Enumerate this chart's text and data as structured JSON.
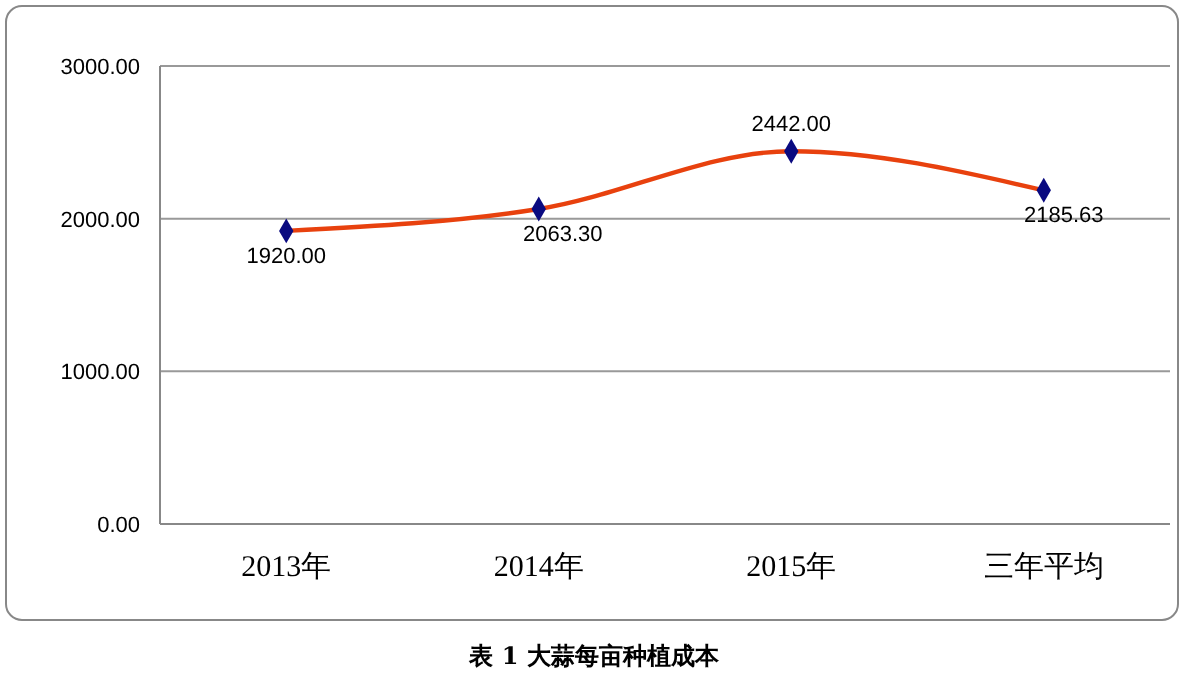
{
  "chart_data": {
    "type": "line",
    "categories": [
      "2013年",
      "2014年",
      "2015年",
      "三年平均"
    ],
    "series": [
      {
        "color": "#e8410e",
        "values": [
          1920,
          2063.3,
          2442,
          2185.63
        ],
        "value_labels": [
          "1920.00",
          "2063.30",
          "2442.00",
          "2185.63"
        ]
      }
    ],
    "ylim": [
      0,
      3000
    ],
    "yticks": [
      {
        "value": 0,
        "label": "0.00"
      },
      {
        "value": 1000,
        "label": "1000.00"
      },
      {
        "value": 2000,
        "label": "2000.00"
      },
      {
        "value": 3000,
        "label": "3000.00"
      }
    ],
    "grid": "y",
    "marker": "diamond",
    "line_style": "solid",
    "annotations": [
      "表 1 大蒜每亩种植成本"
    ]
  }
}
